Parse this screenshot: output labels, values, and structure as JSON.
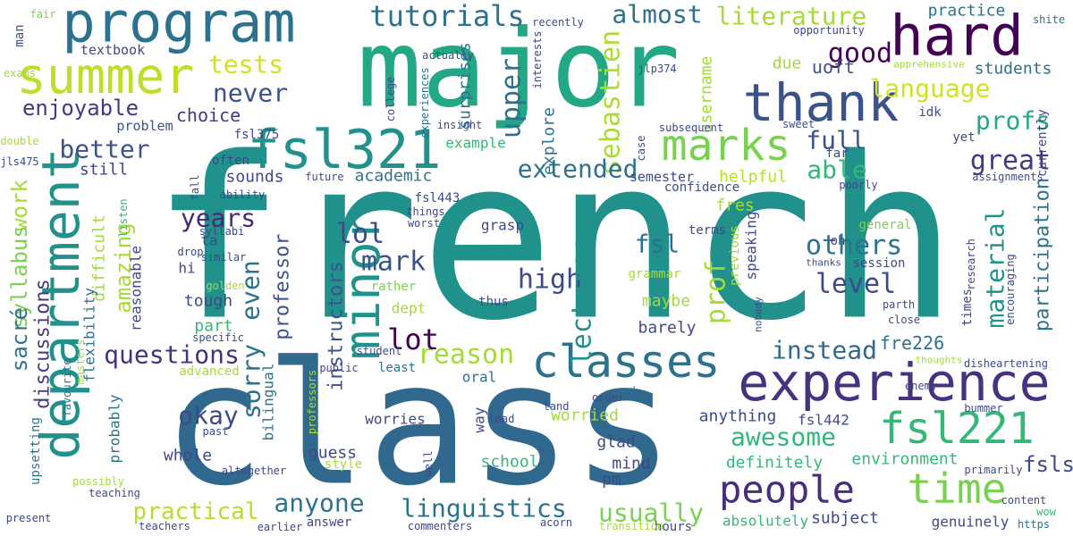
{
  "words": [
    {
      "text": "french",
      "color": "#21918c"
    },
    {
      "text": "class",
      "color": "#31688e"
    },
    {
      "text": "major",
      "color": "#22a884"
    },
    {
      "text": "program",
      "color": "#2c728e"
    },
    {
      "text": "hard",
      "color": "#440154"
    },
    {
      "text": "experience",
      "color": "#46327e"
    },
    {
      "text": "department",
      "color": "#21918c"
    },
    {
      "text": "fsl321",
      "color": "#21918c"
    },
    {
      "text": "thank",
      "color": "#3b528b"
    },
    {
      "text": "summer",
      "color": "#bddf26"
    },
    {
      "text": "minor",
      "color": "#21918c"
    },
    {
      "text": "classes",
      "color": "#2c728e"
    },
    {
      "text": "fsl221",
      "color": "#35b779"
    },
    {
      "text": "marks",
      "color": "#7ad151"
    },
    {
      "text": "time",
      "color": "#7ad151"
    },
    {
      "text": "people",
      "color": "#472d7b"
    },
    {
      "text": "tutorials",
      "color": "#2c728e"
    },
    {
      "text": "almost",
      "color": "#2c728e"
    },
    {
      "text": "literature",
      "color": "#a5db36"
    },
    {
      "text": "good",
      "color": "#440154"
    },
    {
      "text": "tests",
      "color": "#d2e21b"
    },
    {
      "text": "never",
      "color": "#3b528b"
    },
    {
      "text": "language",
      "color": "#d2e21b"
    },
    {
      "text": "enjoyable",
      "color": "#443983"
    },
    {
      "text": "choice",
      "color": "#443983"
    },
    {
      "text": "profs",
      "color": "#22a884"
    },
    {
      "text": "upper",
      "color": "#2c728e"
    },
    {
      "text": "sebastien",
      "color": "#addc30"
    },
    {
      "text": "better",
      "color": "#3b528b"
    },
    {
      "text": "full",
      "color": "#3b528b"
    },
    {
      "text": "extended",
      "color": "#2c728e"
    },
    {
      "text": "great",
      "color": "#443983"
    },
    {
      "text": "able",
      "color": "#35b779"
    },
    {
      "text": "work",
      "color": "#a5db36"
    },
    {
      "text": "syllabus",
      "color": "#7ad151"
    },
    {
      "text": "sacré",
      "color": "#2c728e"
    },
    {
      "text": "years",
      "color": "#482878"
    },
    {
      "text": "lol",
      "color": "#3e4989"
    },
    {
      "text": "others",
      "color": "#2c728e"
    },
    {
      "text": "level",
      "color": "#3e4989"
    },
    {
      "text": "mark",
      "color": "#3b528b"
    },
    {
      "text": "fsl",
      "color": "#2c728e"
    },
    {
      "text": "high",
      "color": "#3e4989"
    },
    {
      "text": "lectures",
      "color": "#21918c"
    },
    {
      "text": "even",
      "color": "#2c728e"
    },
    {
      "text": "amazing",
      "color": "#a5db36"
    },
    {
      "text": "discussions",
      "color": "#443983"
    },
    {
      "text": "instructors",
      "color": "#3b528b"
    },
    {
      "text": "professor",
      "color": "#3b528b"
    },
    {
      "text": "material",
      "color": "#21918c"
    },
    {
      "text": "participation",
      "color": "#2c728e"
    },
    {
      "text": "questions",
      "color": "#46327e"
    },
    {
      "text": "reason",
      "color": "#a5db36"
    },
    {
      "text": "instead",
      "color": "#31688e"
    },
    {
      "text": "lot",
      "color": "#440154"
    },
    {
      "text": "prof",
      "color": "#a5db36"
    },
    {
      "text": "okay",
      "color": "#3e4989"
    },
    {
      "text": "sorry",
      "color": "#2c728e"
    },
    {
      "text": "awesome",
      "color": "#35b779"
    },
    {
      "text": "anyone",
      "color": "#2c728e"
    },
    {
      "text": "linguistics",
      "color": "#2c728e"
    },
    {
      "text": "usually",
      "color": "#7ad151"
    },
    {
      "text": "practical",
      "color": "#b5de2b"
    },
    {
      "text": "fsls",
      "color": "#3e4989"
    },
    {
      "text": "fre226",
      "color": "#2c728e"
    },
    {
      "text": "practice",
      "color": "#2c728e"
    },
    {
      "text": "students",
      "color": "#2c728e"
    },
    {
      "text": "uoft",
      "color": "#3b528b"
    },
    {
      "text": "due",
      "color": "#a5db36"
    },
    {
      "text": "textbook",
      "color": "#3e4989"
    },
    {
      "text": "man",
      "color": "#3b528b"
    },
    {
      "text": "exams",
      "color": "#a5db36"
    },
    {
      "text": "fair",
      "color": "#7ad151"
    },
    {
      "text": "shite",
      "color": "#2c728e"
    },
    {
      "text": "sounds",
      "color": "#3e4989"
    },
    {
      "text": "academic",
      "color": "#2c728e"
    },
    {
      "text": "still",
      "color": "#3e4989"
    },
    {
      "text": "helpful",
      "color": "#b5de2b"
    },
    {
      "text": "semester",
      "color": "#3e4989"
    },
    {
      "text": "fres",
      "color": "#a5db36"
    },
    {
      "text": "example",
      "color": "#35b779"
    },
    {
      "text": "problem",
      "color": "#3b528b"
    },
    {
      "text": "often",
      "color": "#3e4989"
    },
    {
      "text": "fsl375",
      "color": "#3e4989"
    },
    {
      "text": "fsl443",
      "color": "#3e4989"
    },
    {
      "text": "surprises",
      "color": "#2c728e"
    },
    {
      "text": "explore",
      "color": "#2c728e"
    },
    {
      "text": "username",
      "color": "#a5db36"
    },
    {
      "text": "difficult",
      "color": "#a5db36"
    },
    {
      "text": "reasonable",
      "color": "#3e4989"
    },
    {
      "text": "grasp",
      "color": "#3e4989"
    },
    {
      "text": "terms",
      "color": "#3e4989"
    },
    {
      "text": "general",
      "color": "#7ad151"
    },
    {
      "text": "session",
      "color": "#3e4989"
    },
    {
      "text": "research",
      "color": "#3e4989"
    },
    {
      "text": "encouraging",
      "color": "#3e4989"
    },
    {
      "text": "times",
      "color": "#3e4989"
    },
    {
      "text": "maybe",
      "color": "#a5db36"
    },
    {
      "text": "barely",
      "color": "#3e4989"
    },
    {
      "text": "dept",
      "color": "#a5db36"
    },
    {
      "text": "rather",
      "color": "#7ad151"
    },
    {
      "text": "thus",
      "color": "#3e4989"
    },
    {
      "text": "tough",
      "color": "#3e4989"
    },
    {
      "text": "part",
      "color": "#35b779"
    },
    {
      "text": "hi",
      "color": "#3e4989"
    },
    {
      "text": "ta",
      "color": "#3e4989"
    },
    {
      "text": "bilingual",
      "color": "#2c728e"
    },
    {
      "text": "probably",
      "color": "#2c728e"
    },
    {
      "text": "flexibility",
      "color": "#2c728e"
    },
    {
      "text": "worried",
      "color": "#a5db36"
    },
    {
      "text": "anything",
      "color": "#3e4989"
    },
    {
      "text": "fsl442",
      "color": "#3e4989"
    },
    {
      "text": "glad",
      "color": "#3e4989"
    },
    {
      "text": "whole",
      "color": "#3e4989"
    },
    {
      "text": "guess",
      "color": "#3e4989"
    },
    {
      "text": "school",
      "color": "#35b779"
    },
    {
      "text": "mind",
      "color": "#3e4989"
    },
    {
      "text": "definitely",
      "color": "#35b779"
    },
    {
      "text": "environment",
      "color": "#35b779"
    },
    {
      "text": "subject",
      "color": "#3e4989"
    },
    {
      "text": "genuinely",
      "color": "#3e4989"
    },
    {
      "text": "absolutely",
      "color": "#35b779"
    },
    {
      "text": "hours",
      "color": "#3e4989"
    },
    {
      "text": "pm",
      "color": "#3e4989"
    },
    {
      "text": "way",
      "color": "#3e4989"
    },
    {
      "text": "worries",
      "color": "#3e4989"
    },
    {
      "text": "oral",
      "color": "#2c728e"
    },
    {
      "text": "least",
      "color": "#2c728e"
    },
    {
      "text": "advanced",
      "color": "#a5db36"
    },
    {
      "text": "upsetting",
      "color": "#2c728e"
    },
    {
      "text": "style",
      "color": "#a5db36"
    },
    {
      "text": "answer",
      "color": "#3e4989"
    },
    {
      "text": "specific",
      "color": "#3e4989"
    },
    {
      "text": "altogether",
      "color": "#3e4989"
    },
    {
      "text": "past",
      "color": "#3e4989"
    },
    {
      "text": "teaching",
      "color": "#3e4989"
    },
    {
      "text": "present",
      "color": "#3e4989"
    },
    {
      "text": "teachers",
      "color": "#3e4989"
    },
    {
      "text": "earlier",
      "color": "#3e4989"
    },
    {
      "text": "commenters",
      "color": "#3e4989"
    },
    {
      "text": "acorn",
      "color": "#3e4989"
    },
    {
      "text": "transition",
      "color": "#a5db36"
    },
    {
      "text": "https",
      "color": "#2c728e"
    },
    {
      "text": "wow",
      "color": "#35b779"
    },
    {
      "text": "content",
      "color": "#3e4989"
    },
    {
      "text": "primarily",
      "color": "#3e4989"
    },
    {
      "text": "bummer",
      "color": "#3e4989"
    },
    {
      "text": "enemy",
      "color": "#3e4989"
    },
    {
      "text": "disheartening",
      "color": "#3e4989"
    },
    {
      "text": "thoughts",
      "color": "#a5db36"
    },
    {
      "text": "parth",
      "color": "#3e4989"
    },
    {
      "text": "close",
      "color": "#3e4989"
    },
    {
      "text": "nobody",
      "color": "#3e4989"
    },
    {
      "text": "thanks",
      "color": "#3e4989"
    },
    {
      "text": "oh",
      "color": "#3e4989"
    },
    {
      "text": "speaking",
      "color": "#3e4989"
    },
    {
      "text": "previous",
      "color": "#a5db36"
    },
    {
      "text": "grammar",
      "color": "#a5db36"
    },
    {
      "text": "poorly",
      "color": "#3e4989"
    },
    {
      "text": "far",
      "color": "#3e4989"
    },
    {
      "text": "sweet",
      "color": "#3e4989"
    },
    {
      "text": "idk",
      "color": "#3e4989"
    },
    {
      "text": "yet",
      "color": "#3e4989"
    },
    {
      "text": "currently",
      "color": "#3e4989"
    },
    {
      "text": "assignments",
      "color": "#3e4989"
    },
    {
      "text": "confidence",
      "color": "#3e4989"
    },
    {
      "text": "subsequent",
      "color": "#3e4989"
    },
    {
      "text": "jlp374",
      "color": "#3e4989"
    },
    {
      "text": "apprehensive",
      "color": "#a5db36"
    },
    {
      "text": "opportunity",
      "color": "#3e4989"
    },
    {
      "text": "recently",
      "color": "#3e4989"
    },
    {
      "text": "actually",
      "color": "#3e4989"
    },
    {
      "text": "interests",
      "color": "#3e4989"
    },
    {
      "text": "college",
      "color": "#3e4989"
    },
    {
      "text": "experiences",
      "color": "#2c728e"
    },
    {
      "text": "insight",
      "color": "#3e4989"
    },
    {
      "text": "case",
      "color": "#3e4989"
    },
    {
      "text": "future",
      "color": "#3e4989"
    },
    {
      "text": "fall",
      "color": "#3e4989"
    },
    {
      "text": "ability",
      "color": "#3e4989"
    },
    {
      "text": "things",
      "color": "#3e4989"
    },
    {
      "text": "worst",
      "color": "#3e4989"
    },
    {
      "text": "drop",
      "color": "#3e4989"
    },
    {
      "text": "similar",
      "color": "#3e4989"
    },
    {
      "text": "syllabi",
      "color": "#3e4989"
    },
    {
      "text": "listen",
      "color": "#35b779"
    },
    {
      "text": "golden",
      "color": "#a5db36"
    },
    {
      "text": "masters",
      "color": "#a5db36"
    },
    {
      "text": "favourite",
      "color": "#2c728e"
    },
    {
      "text": "student",
      "color": "#3e4989"
    },
    {
      "text": "public",
      "color": "#3e4989"
    },
    {
      "text": "land",
      "color": "#3e4989"
    },
    {
      "text": "end",
      "color": "#2c728e"
    },
    {
      "text": "order",
      "color": "#3e4989"
    },
    {
      "text": "load",
      "color": "#3e4989"
    },
    {
      "text": "well",
      "color": "#3e4989"
    },
    {
      "text": "professors",
      "color": "#a5db36"
    },
    {
      "text": "possibly",
      "color": "#a5db36"
    },
    {
      "text": "double",
      "color": "#a5db36"
    },
    {
      "text": "jls475",
      "color": "#3e4989"
    }
  ]
}
